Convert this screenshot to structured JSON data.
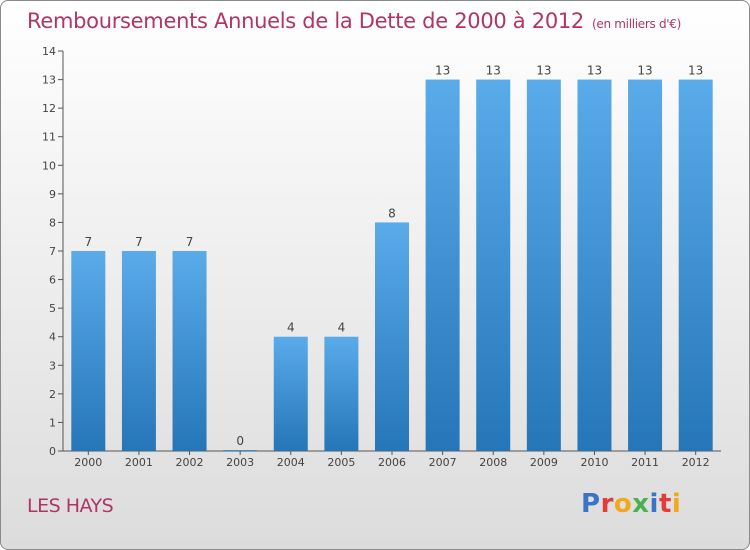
{
  "header": {
    "title": "Remboursements Annuels de la Dette de 2000 à 2012",
    "unit": "(en milliers d'€)"
  },
  "footer": {
    "place": "LES HAYS",
    "logo_text": "Proxiti",
    "logo_colors": [
      "#3b74c4",
      "#e33b3b",
      "#f2a81c",
      "#4caf50",
      "#3b74c4",
      "#e33b3b",
      "#f2a81c"
    ]
  },
  "colors": {
    "bar_light": "#5aabea",
    "bar_dark": "#2576b8",
    "title": "#b03566"
  },
  "chart_data": {
    "type": "bar",
    "title": "Remboursements Annuels de la Dette de 2000 à 2012",
    "subtitle": "(en milliers d'€)",
    "categories": [
      "2000",
      "2001",
      "2002",
      "2003",
      "2004",
      "2005",
      "2006",
      "2007",
      "2008",
      "2009",
      "2010",
      "2011",
      "2012"
    ],
    "values": [
      7,
      7,
      7,
      0,
      4,
      4,
      8,
      13,
      13,
      13,
      13,
      13,
      13
    ],
    "data_labels": [
      "7",
      "7",
      "7",
      "0",
      "4",
      "4",
      "8",
      "13",
      "13",
      "13",
      "13",
      "13",
      "13"
    ],
    "ylim": [
      0,
      14
    ],
    "yticks": [
      0,
      1,
      2,
      3,
      4,
      5,
      6,
      7,
      8,
      9,
      10,
      11,
      12,
      13,
      14
    ],
    "grid": false,
    "legend": "none"
  }
}
